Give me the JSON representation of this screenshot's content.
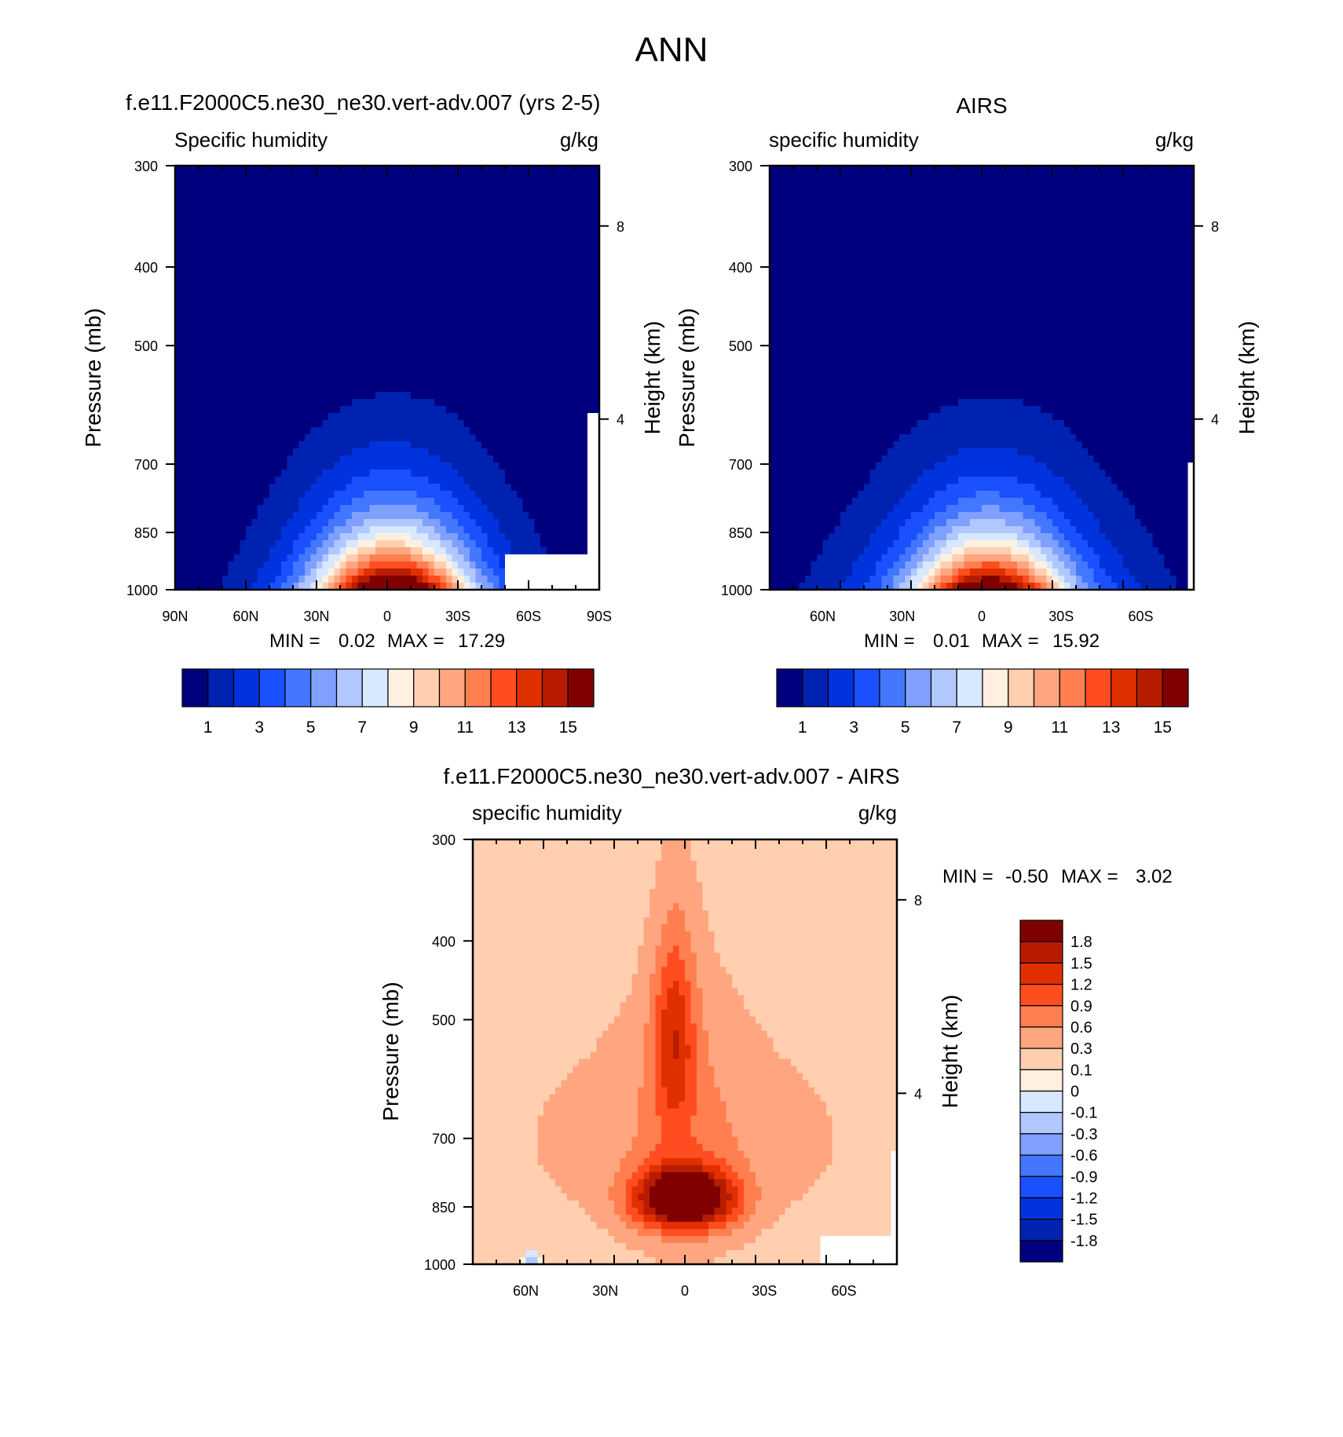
{
  "figure": {
    "title": "ANN"
  },
  "chart_data": [
    {
      "type": "heatmap",
      "id": "model",
      "title": "f.e11.F2000C5.ne30_ne30.vert-adv.007 (yrs 2-5)",
      "left_label": "Specific humidity",
      "units": "g/kg",
      "ylabel": "Pressure (mb)",
      "ylabel_right": "Height (km)",
      "y_ticks": [
        "300",
        "400",
        "500",
        "700",
        "850",
        "1000"
      ],
      "y_right_ticks": [
        "8",
        "4"
      ],
      "x_ticks": [
        "90N",
        "60N",
        "30N",
        "0",
        "30S",
        "60S",
        "90S"
      ],
      "min_label": "MIN =",
      "min_value": "0.02",
      "max_label": "MAX =",
      "max_value": "17.29",
      "min": 0.02,
      "max": 17.29,
      "colorbar_labels": [
        "1",
        "3",
        "5",
        "7",
        "9",
        "11",
        "13",
        "15"
      ],
      "field": {
        "peak": 16.5,
        "center_lat": -2,
        "width": 30,
        "base": 0.02
      }
    },
    {
      "type": "heatmap",
      "id": "obs",
      "title": "AIRS",
      "left_label": "specific humidity",
      "units": "g/kg",
      "ylabel": "Pressure (mb)",
      "ylabel_right": "Height (km)",
      "y_ticks": [
        "300",
        "400",
        "500",
        "700",
        "850",
        "1000"
      ],
      "y_right_ticks": [
        "8",
        "4"
      ],
      "x_ticks": [
        "60N",
        "30N",
        "0",
        "30S",
        "60S"
      ],
      "min_label": "MIN =",
      "min_value": "0.01",
      "max_label": "MAX =",
      "max_value": "15.92",
      "min": 0.01,
      "max": 15.92,
      "colorbar_labels": [
        "1",
        "3",
        "5",
        "7",
        "9",
        "11",
        "13",
        "15"
      ],
      "field": {
        "peak": 15.2,
        "center_lat": -3,
        "width": 26,
        "base": 0.01
      }
    },
    {
      "type": "heatmap",
      "id": "diff",
      "title": "f.e11.F2000C5.ne30_ne30.vert-adv.007 - AIRS",
      "left_label": "specific humidity",
      "units": "g/kg",
      "ylabel": "Pressure (mb)",
      "ylabel_right": "Height (km)",
      "y_ticks": [
        "300",
        "400",
        "500",
        "700",
        "850",
        "1000"
      ],
      "y_right_ticks": [
        "8",
        "4"
      ],
      "x_ticks": [
        "60N",
        "30N",
        "0",
        "30S",
        "60S"
      ],
      "min_label": "MIN =",
      "min_value": "-0.50",
      "max_label": "MAX =",
      "max_value": "3.02",
      "min": -0.5,
      "max": 3.02,
      "colorbar_labels": [
        "1.8",
        "1.5",
        "1.2",
        "0.9",
        "0.6",
        "0.3",
        "0.1",
        "0",
        "-0.1",
        "-0.3",
        "-0.6",
        "-0.9",
        "-1.2",
        "-1.5",
        "-1.8"
      ]
    }
  ],
  "colors": {
    "main_palette": [
      "#00007f",
      "#0022b0",
      "#0033dd",
      "#1a50ff",
      "#4477ff",
      "#7fa0ff",
      "#b0c8ff",
      "#d8e8ff",
      "#fff0e0",
      "#ffcfb0",
      "#ffa680",
      "#ff7f50",
      "#ff4d20",
      "#e03000",
      "#b81c00",
      "#800000"
    ],
    "main_levels": [
      1,
      2,
      3,
      4,
      5,
      6,
      7,
      8,
      9,
      10,
      11,
      12,
      13,
      14,
      15
    ],
    "diff_palette": [
      "#00007f",
      "#0022b0",
      "#0033dd",
      "#1a50ff",
      "#4477ff",
      "#7fa0ff",
      "#b0c8ff",
      "#d8e8ff",
      "#fff0e0",
      "#ffcfb0",
      "#ffa680",
      "#ff7f50",
      "#ff4d20",
      "#e03000",
      "#b81c00",
      "#800000"
    ],
    "diff_levels": [
      -1.8,
      -1.5,
      -1.2,
      -0.9,
      -0.6,
      -0.3,
      -0.1,
      0,
      0.1,
      0.3,
      0.6,
      0.9,
      1.2,
      1.5,
      1.8
    ]
  }
}
